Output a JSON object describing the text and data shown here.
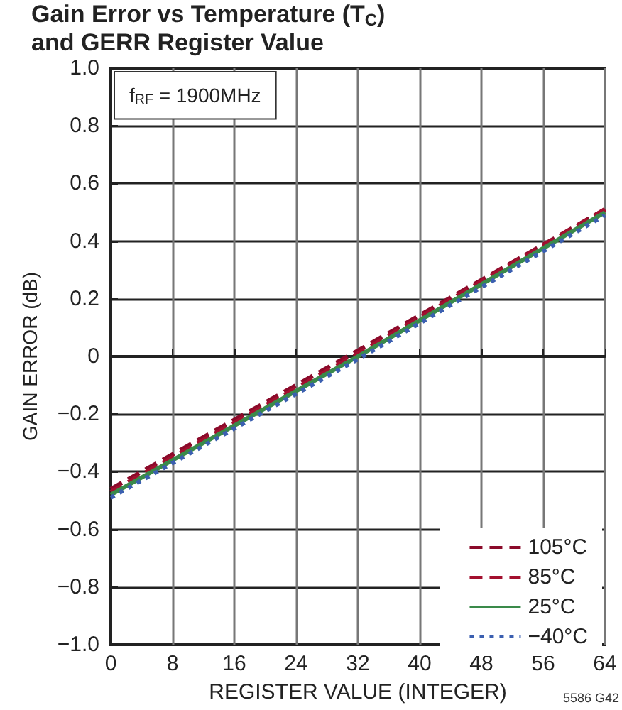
{
  "chart_data": {
    "type": "line",
    "title": "Gain Error vs Temperature (T$_{C}$)\nand GERR Register Value",
    "xlabel": "REGISTER VALUE (INTEGER)",
    "ylabel": "GAIN ERROR (dB)",
    "x": [
      0,
      32,
      64
    ],
    "series": [
      {
        "name": "105°C",
        "color": "#8b0a2a",
        "line_style": "dashed",
        "values": [
          -0.46,
          0.02,
          0.51
        ]
      },
      {
        "name": "85°C",
        "color": "#a3102f",
        "line_style": "dashed",
        "values": [
          -0.47,
          0.01,
          0.51
        ]
      },
      {
        "name": "25°C",
        "color": "#3a8a4a",
        "line_style": "solid",
        "values": [
          -0.48,
          0.0,
          0.5
        ]
      },
      {
        "name": "−40°C",
        "color": "#3b5fb0",
        "line_style": "dotted",
        "values": [
          -0.49,
          -0.01,
          0.49
        ]
      }
    ],
    "xlim": [
      0,
      64
    ],
    "xticks": [
      0,
      8,
      16,
      24,
      32,
      40,
      48,
      56,
      64
    ],
    "ylim": [
      -1.0,
      1.0
    ],
    "yticks": [
      {
        "value": -1.0,
        "label": "−1.0"
      },
      {
        "value": -0.8,
        "label": "−0.8"
      },
      {
        "value": -0.6,
        "label": "−0.6"
      },
      {
        "value": -0.4,
        "label": "−0.4"
      },
      {
        "value": -0.2,
        "label": "−0.2"
      },
      {
        "value": 0,
        "label": "0"
      },
      {
        "value": 0.2,
        "label": "0.2"
      },
      {
        "value": 0.4,
        "label": "0.4"
      },
      {
        "value": 0.6,
        "label": "0.6"
      },
      {
        "value": 0.8,
        "label": "0.8"
      },
      {
        "value": 1.0,
        "label": "1.0"
      }
    ],
    "grid": true,
    "legend": "bottom right",
    "marker": "none",
    "annotations": [
      "f$_{RF}$ = 1900MHz",
      "5586 G42"
    ]
  }
}
